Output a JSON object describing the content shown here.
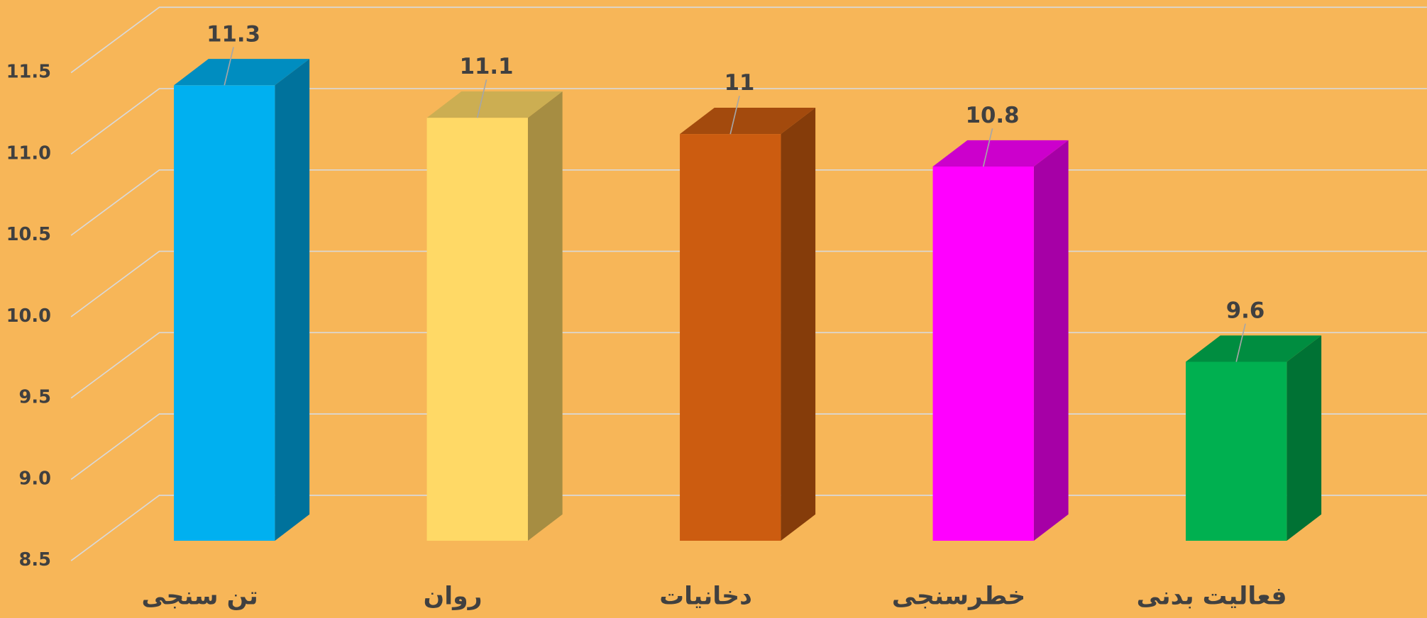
{
  "chart_data": {
    "type": "bar3d",
    "categories": [
      "تن سنجی",
      "روان",
      "دخانیات",
      "خطرسنجی",
      "فعالیت بدنی"
    ],
    "values": [
      11.3,
      11.1,
      11,
      10.8,
      9.6
    ],
    "colors": [
      "#00b0f0",
      "#ffd966",
      "#cc5c10",
      "#ff00ff",
      "#00b050"
    ],
    "ylim": [
      8.5,
      11.5
    ],
    "yticks": [
      8.5,
      {
        "value": 9,
        "label": "9.0"
      },
      9.5,
      {
        "value": 10,
        "label": "10.0"
      },
      10.5,
      {
        "value": 11,
        "label": "11.0"
      },
      11.5
    ],
    "grid": true
  }
}
